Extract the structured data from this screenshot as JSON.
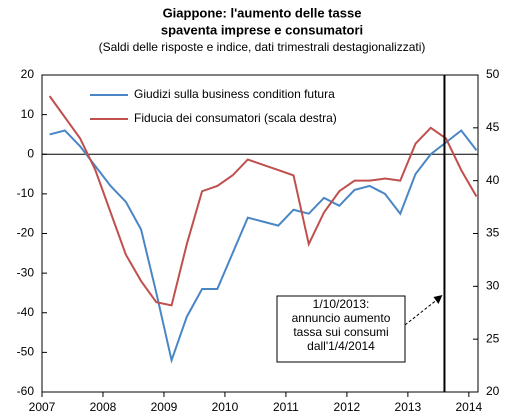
{
  "chart_data": {
    "type": "line",
    "title": [
      "Giappone: l'aumento delle tasse",
      "spaventa imprese e consumatori"
    ],
    "subtitle": "(Saldi delle risposte e indice, dati trimestrali destagionalizzati)",
    "x": [
      2007.125,
      2007.375,
      2007.625,
      2007.875,
      2008.125,
      2008.375,
      2008.625,
      2008.875,
      2009.125,
      2009.375,
      2009.625,
      2009.875,
      2010.125,
      2010.375,
      2010.625,
      2010.875,
      2011.125,
      2011.375,
      2011.625,
      2011.875,
      2012.125,
      2012.375,
      2012.625,
      2012.875,
      2013.125,
      2013.375,
      2013.625,
      2013.875,
      2014.125
    ],
    "series": [
      {
        "name": "Giudizi sulla business condition futura",
        "color": "#4a86c5",
        "axis": "y",
        "values": [
          5,
          6,
          2,
          -3,
          -8,
          -12,
          -19,
          -35,
          -52,
          -41,
          -34,
          -34,
          -25,
          -16,
          -17,
          -18,
          -14,
          -15,
          -11,
          -13,
          -9,
          -8,
          -10,
          -15,
          -5,
          0,
          3,
          6,
          1
        ]
      },
      {
        "name": "Fiducia dei consumatori (scala destra)",
        "color": "#c0504d",
        "axis": "y2",
        "values": [
          48,
          46,
          44,
          41,
          37,
          33,
          30.5,
          28.5,
          28.2,
          34,
          39,
          39.5,
          40.5,
          42,
          41.5,
          41,
          40.5,
          34,
          37,
          39,
          40,
          40,
          40.2,
          40,
          43.5,
          45,
          44,
          41,
          38.5
        ]
      }
    ],
    "xlim": [
      2007,
      2014.15
    ],
    "xticks": [
      2007,
      2008,
      2009,
      2010,
      2011,
      2012,
      2013,
      2014
    ],
    "ylim": [
      -60,
      20
    ],
    "yticks": [
      -60,
      -50,
      -40,
      -30,
      -20,
      -10,
      0,
      10,
      20
    ],
    "y2lim": [
      20,
      50
    ],
    "y2ticks": [
      20,
      25,
      30,
      35,
      40,
      45,
      50
    ],
    "event_x": 2013.6,
    "annotation": [
      "1/10/2013:",
      "annuncio aumento",
      "tassa sui consumi",
      "dall'1/4/2014"
    ]
  }
}
